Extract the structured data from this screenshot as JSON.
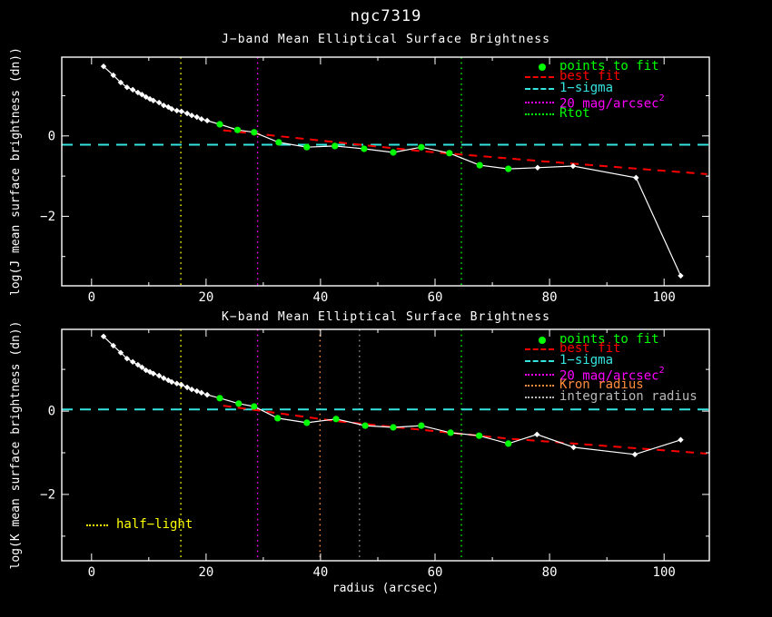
{
  "page": {
    "title": "ngc7319",
    "background": "#000000"
  },
  "chart_data": [
    {
      "type": "line",
      "band": "J",
      "title": "J−band Mean Elliptical Surface Brightness",
      "xlabel": "",
      "ylabel": "log(J mean surface brightness (dn))",
      "xlim": [
        -5.2,
        107.9
      ],
      "ylim": [
        -3.73,
        1.96
      ],
      "xticks": [
        0,
        20,
        40,
        60,
        80,
        100
      ],
      "xticks_minor": [
        10,
        30,
        50,
        70,
        90
      ],
      "yticks": [
        0,
        -2
      ],
      "yticks_minor": [
        1,
        -1,
        -3
      ],
      "grid": false,
      "legend_position": "top-right",
      "series": {
        "profile": {
          "name": "surface-brightness-profile",
          "color": "#ffffff",
          "point_colors": {
            "w": "#ffffff",
            "g": "#00ff00"
          },
          "points": [
            [
              2.1,
              1.73,
              "w"
            ],
            [
              3.8,
              1.51,
              "w"
            ],
            [
              5.1,
              1.33,
              "w"
            ],
            [
              6.2,
              1.21,
              "w"
            ],
            [
              7.2,
              1.15,
              "w"
            ],
            [
              8.1,
              1.08,
              "w"
            ],
            [
              8.8,
              1.03,
              "w"
            ],
            [
              9.5,
              0.97,
              "w"
            ],
            [
              10.2,
              0.92,
              "w"
            ],
            [
              10.8,
              0.88,
              "w"
            ],
            [
              11.8,
              0.83,
              "w"
            ],
            [
              12.6,
              0.76,
              "w"
            ],
            [
              13.4,
              0.72,
              "w"
            ],
            [
              14.0,
              0.67,
              "w"
            ],
            [
              14.9,
              0.63,
              "w"
            ],
            [
              15.7,
              0.61,
              "w"
            ],
            [
              16.7,
              0.56,
              "w"
            ],
            [
              17.5,
              0.51,
              "w"
            ],
            [
              18.4,
              0.47,
              "w"
            ],
            [
              19.2,
              0.42,
              "w"
            ],
            [
              20.2,
              0.38,
              "w"
            ],
            [
              22.4,
              0.29,
              "g"
            ],
            [
              25.5,
              0.15,
              "g"
            ],
            [
              28.4,
              0.09,
              "g"
            ],
            [
              32.7,
              -0.16,
              "g"
            ],
            [
              37.6,
              -0.28,
              "g"
            ],
            [
              42.5,
              -0.25,
              "g"
            ],
            [
              47.6,
              -0.32,
              "g"
            ],
            [
              52.7,
              -0.41,
              "g"
            ],
            [
              57.6,
              -0.28,
              "g"
            ],
            [
              62.5,
              -0.43,
              "g"
            ],
            [
              67.8,
              -0.73,
              "g"
            ],
            [
              72.8,
              -0.82,
              "g"
            ],
            [
              77.9,
              -0.79,
              "w"
            ],
            [
              84.1,
              -0.75,
              "w"
            ],
            [
              95.1,
              -1.04,
              "w"
            ],
            [
              102.9,
              -3.48,
              "w"
            ]
          ]
        },
        "best_fit": {
          "name": "best-fit",
          "color": "#ff0000",
          "points": [
            [
              23,
              0.14
            ],
            [
              57.6,
              -0.38
            ],
            [
              78.7,
              -0.63
            ],
            [
              107.5,
              -0.95
            ]
          ]
        },
        "one_sigma": {
          "name": "one-sigma",
          "color": "#35e4de",
          "y": -0.22
        }
      },
      "vlines": [
        {
          "name": "half-light-radius",
          "x": 15.6,
          "color": "#ffff00"
        },
        {
          "name": "20-mag-arcsec2-radius",
          "x": 29.0,
          "color": "#ff00ff"
        },
        {
          "name": "rtot-radius",
          "x": 64.6,
          "color": "#00ff00"
        }
      ],
      "legend": [
        {
          "label": "points to fit",
          "color": "#00ff00",
          "marker": "dot"
        },
        {
          "label": "best fit",
          "color": "#ff0000",
          "marker": "dash"
        },
        {
          "label": "1−sigma",
          "color": "#35e4de",
          "marker": "dash"
        },
        {
          "label": "20 mag/arcsec",
          "sup": "2",
          "color": "#ff00ff",
          "marker": "dots"
        },
        {
          "label": "Rtot",
          "color": "#00ff00",
          "marker": "dots"
        }
      ]
    },
    {
      "type": "line",
      "band": "K",
      "title": "K−band Mean Elliptical Surface Brightness",
      "xlabel": "radius (arcsec)",
      "ylabel": "log(K mean surface brightness (dn))",
      "xlim": [
        -5.2,
        107.9
      ],
      "ylim": [
        -3.59,
        1.96
      ],
      "xticks": [
        0,
        20,
        40,
        60,
        80,
        100
      ],
      "xticks_minor": [
        10,
        30,
        50,
        70,
        90
      ],
      "yticks": [
        0,
        -2
      ],
      "yticks_minor": [
        1,
        -1,
        -3
      ],
      "grid": false,
      "legend_position": "top-right",
      "series": {
        "profile": {
          "name": "surface-brightness-profile",
          "color": "#ffffff",
          "point_colors": {
            "w": "#ffffff",
            "g": "#00ff00"
          },
          "points": [
            [
              2.1,
              1.79,
              "w"
            ],
            [
              3.8,
              1.57,
              "w"
            ],
            [
              5.1,
              1.4,
              "w"
            ],
            [
              6.2,
              1.26,
              "w"
            ],
            [
              7.2,
              1.18,
              "w"
            ],
            [
              8.1,
              1.11,
              "w"
            ],
            [
              8.8,
              1.05,
              "w"
            ],
            [
              9.5,
              0.98,
              "w"
            ],
            [
              10.2,
              0.94,
              "w"
            ],
            [
              10.8,
              0.9,
              "w"
            ],
            [
              11.8,
              0.85,
              "w"
            ],
            [
              12.6,
              0.79,
              "w"
            ],
            [
              13.4,
              0.74,
              "w"
            ],
            [
              14.0,
              0.7,
              "w"
            ],
            [
              14.9,
              0.66,
              "w"
            ],
            [
              15.7,
              0.63,
              "w"
            ],
            [
              16.7,
              0.57,
              "w"
            ],
            [
              17.5,
              0.52,
              "w"
            ],
            [
              18.4,
              0.48,
              "w"
            ],
            [
              19.2,
              0.44,
              "w"
            ],
            [
              20.2,
              0.39,
              "w"
            ],
            [
              22.4,
              0.31,
              "g"
            ],
            [
              25.7,
              0.18,
              "g"
            ],
            [
              28.4,
              0.11,
              "g"
            ],
            [
              32.5,
              -0.17,
              "g"
            ],
            [
              37.6,
              -0.28,
              "g"
            ],
            [
              42.7,
              -0.19,
              "g"
            ],
            [
              47.8,
              -0.35,
              "g"
            ],
            [
              52.7,
              -0.39,
              "g"
            ],
            [
              57.6,
              -0.35,
              "g"
            ],
            [
              62.7,
              -0.52,
              "g"
            ],
            [
              67.7,
              -0.59,
              "g"
            ],
            [
              72.8,
              -0.78,
              "g"
            ],
            [
              77.8,
              -0.56,
              "w"
            ],
            [
              84.2,
              -0.87,
              "w"
            ],
            [
              94.9,
              -1.04,
              "w"
            ],
            [
              102.9,
              -0.69,
              "w"
            ]
          ]
        },
        "best_fit": {
          "name": "best-fit",
          "color": "#ff0000",
          "points": [
            [
              23,
              0.13
            ],
            [
              42.7,
              -0.24
            ],
            [
              72.8,
              -0.66
            ],
            [
              107.5,
              -1.02
            ]
          ]
        },
        "one_sigma": {
          "name": "one-sigma",
          "color": "#35e4de",
          "y": 0.04
        }
      },
      "vlines": [
        {
          "name": "half-light-radius",
          "x": 15.6,
          "color": "#ffff00"
        },
        {
          "name": "20-mag-arcsec2-radius",
          "x": 29.0,
          "color": "#ff00ff"
        },
        {
          "name": "kron-radius",
          "x": 39.9,
          "color": "#ff8c3c"
        },
        {
          "name": "integration-radius",
          "x": 46.8,
          "color": "#909090"
        },
        {
          "name": "rtot-radius",
          "x": 64.6,
          "color": "#00ff00"
        }
      ],
      "legend": [
        {
          "label": "points to fit",
          "color": "#00ff00",
          "marker": "dot"
        },
        {
          "label": "best fit",
          "color": "#ff0000",
          "marker": "dash"
        },
        {
          "label": "1−sigma",
          "color": "#35e4de",
          "marker": "dash"
        },
        {
          "label": "20 mag/arcsec",
          "sup": "2",
          "color": "#ff00ff",
          "marker": "dots"
        },
        {
          "label": "Kron radius",
          "color": "#ff8c3c",
          "marker": "dots"
        },
        {
          "label": "integration radius",
          "color": "#b8b8b8",
          "marker": "dots"
        }
      ],
      "annotation": {
        "label": "half−light",
        "color": "#ffff00",
        "marker": "dots"
      }
    }
  ]
}
